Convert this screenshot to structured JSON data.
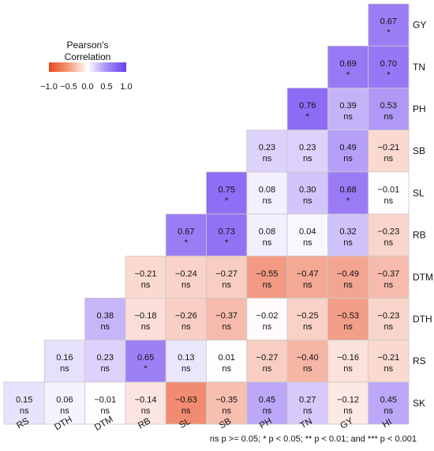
{
  "chart_data": {
    "type": "heatmap",
    "x_labels": [
      "RS",
      "DTH",
      "DTM",
      "RB",
      "SL",
      "SB",
      "PH",
      "TN",
      "GY",
      "HI"
    ],
    "y_labels": [
      "GY",
      "TN",
      "PH",
      "SB",
      "SL",
      "RB",
      "DTM",
      "DTH",
      "RS",
      "SK"
    ],
    "cells": [
      {
        "row": "GY",
        "col": "HI",
        "value": 0.67,
        "sig": "*"
      },
      {
        "row": "TN",
        "col": "GY",
        "value": 0.69,
        "sig": "*"
      },
      {
        "row": "TN",
        "col": "HI",
        "value": 0.7,
        "sig": "*"
      },
      {
        "row": "PH",
        "col": "TN",
        "value": 0.76,
        "sig": "*"
      },
      {
        "row": "PH",
        "col": "GY",
        "value": 0.39,
        "sig": "ns"
      },
      {
        "row": "PH",
        "col": "HI",
        "value": 0.53,
        "sig": "ns"
      },
      {
        "row": "SB",
        "col": "PH",
        "value": 0.23,
        "sig": "ns"
      },
      {
        "row": "SB",
        "col": "TN",
        "value": 0.23,
        "sig": "ns"
      },
      {
        "row": "SB",
        "col": "GY",
        "value": 0.49,
        "sig": "ns"
      },
      {
        "row": "SB",
        "col": "HI",
        "value": -0.21,
        "sig": "ns"
      },
      {
        "row": "SL",
        "col": "SB",
        "value": 0.75,
        "sig": "*"
      },
      {
        "row": "SL",
        "col": "PH",
        "value": 0.08,
        "sig": "ns"
      },
      {
        "row": "SL",
        "col": "TN",
        "value": 0.3,
        "sig": "ns"
      },
      {
        "row": "SL",
        "col": "GY",
        "value": 0.68,
        "sig": "*"
      },
      {
        "row": "SL",
        "col": "HI",
        "value": -0.01,
        "sig": "ns"
      },
      {
        "row": "RB",
        "col": "SL",
        "value": 0.67,
        "sig": "*"
      },
      {
        "row": "RB",
        "col": "SB",
        "value": 0.73,
        "sig": "*"
      },
      {
        "row": "RB",
        "col": "PH",
        "value": 0.08,
        "sig": "ns"
      },
      {
        "row": "RB",
        "col": "TN",
        "value": 0.04,
        "sig": "ns"
      },
      {
        "row": "RB",
        "col": "GY",
        "value": 0.32,
        "sig": "ns"
      },
      {
        "row": "RB",
        "col": "HI",
        "value": -0.23,
        "sig": "ns"
      },
      {
        "row": "DTM",
        "col": "RB",
        "value": -0.21,
        "sig": "ns"
      },
      {
        "row": "DTM",
        "col": "SL",
        "value": -0.24,
        "sig": "ns"
      },
      {
        "row": "DTM",
        "col": "SB",
        "value": -0.27,
        "sig": "ns"
      },
      {
        "row": "DTM",
        "col": "PH",
        "value": -0.55,
        "sig": "ns"
      },
      {
        "row": "DTM",
        "col": "TN",
        "value": -0.47,
        "sig": "ns"
      },
      {
        "row": "DTM",
        "col": "GY",
        "value": -0.49,
        "sig": "ns"
      },
      {
        "row": "DTM",
        "col": "HI",
        "value": -0.37,
        "sig": "ns"
      },
      {
        "row": "DTH",
        "col": "DTM",
        "value": 0.38,
        "sig": "ns"
      },
      {
        "row": "DTH",
        "col": "RB",
        "value": -0.18,
        "sig": "ns"
      },
      {
        "row": "DTH",
        "col": "SL",
        "value": -0.26,
        "sig": "ns"
      },
      {
        "row": "DTH",
        "col": "SB",
        "value": -0.37,
        "sig": "ns"
      },
      {
        "row": "DTH",
        "col": "PH",
        "value": -0.02,
        "sig": "ns"
      },
      {
        "row": "DTH",
        "col": "TN",
        "value": -0.25,
        "sig": "ns"
      },
      {
        "row": "DTH",
        "col": "GY",
        "value": -0.53,
        "sig": "ns"
      },
      {
        "row": "DTH",
        "col": "HI",
        "value": -0.23,
        "sig": "ns"
      },
      {
        "row": "RS",
        "col": "DTH",
        "value": 0.16,
        "sig": "ns"
      },
      {
        "row": "RS",
        "col": "DTM",
        "value": 0.23,
        "sig": "ns"
      },
      {
        "row": "RS",
        "col": "RB",
        "value": 0.65,
        "sig": "*"
      },
      {
        "row": "RS",
        "col": "SL",
        "value": 0.13,
        "sig": "ns"
      },
      {
        "row": "RS",
        "col": "SB",
        "value": 0.01,
        "sig": "ns"
      },
      {
        "row": "RS",
        "col": "PH",
        "value": -0.27,
        "sig": "ns"
      },
      {
        "row": "RS",
        "col": "TN",
        "value": -0.4,
        "sig": "ns"
      },
      {
        "row": "RS",
        "col": "GY",
        "value": -0.16,
        "sig": "ns"
      },
      {
        "row": "RS",
        "col": "HI",
        "value": -0.21,
        "sig": "ns"
      },
      {
        "row": "SK",
        "col": "RS",
        "value": 0.15,
        "sig": "ns"
      },
      {
        "row": "SK",
        "col": "DTH",
        "value": 0.06,
        "sig": "ns"
      },
      {
        "row": "SK",
        "col": "DTM",
        "value": -0.01,
        "sig": "ns"
      },
      {
        "row": "SK",
        "col": "RB",
        "value": -0.14,
        "sig": "ns"
      },
      {
        "row": "SK",
        "col": "SL",
        "value": -0.63,
        "sig": "ns"
      },
      {
        "row": "SK",
        "col": "SB",
        "value": -0.35,
        "sig": "ns"
      },
      {
        "row": "SK",
        "col": "PH",
        "value": 0.45,
        "sig": "ns"
      },
      {
        "row": "SK",
        "col": "TN",
        "value": 0.27,
        "sig": "ns"
      },
      {
        "row": "SK",
        "col": "GY",
        "value": -0.12,
        "sig": "ns"
      },
      {
        "row": "SK",
        "col": "HI",
        "value": 0.45,
        "sig": "ns"
      }
    ],
    "legend": {
      "title": "Pearson's\nCorrelation",
      "ticks": [
        "−1.0",
        "−0.5",
        "0.0",
        "0.5",
        "1.0"
      ],
      "range": [
        -1,
        1
      ],
      "colors": {
        "negative": "#e8481e",
        "zero": "#ffffff",
        "positive": "#6a3cf0"
      },
      "placement": "top-left"
    }
  },
  "footnote": "ns p >= 0.05; * p < 0.05; ** p < 0.01; and *** p < 0.001"
}
